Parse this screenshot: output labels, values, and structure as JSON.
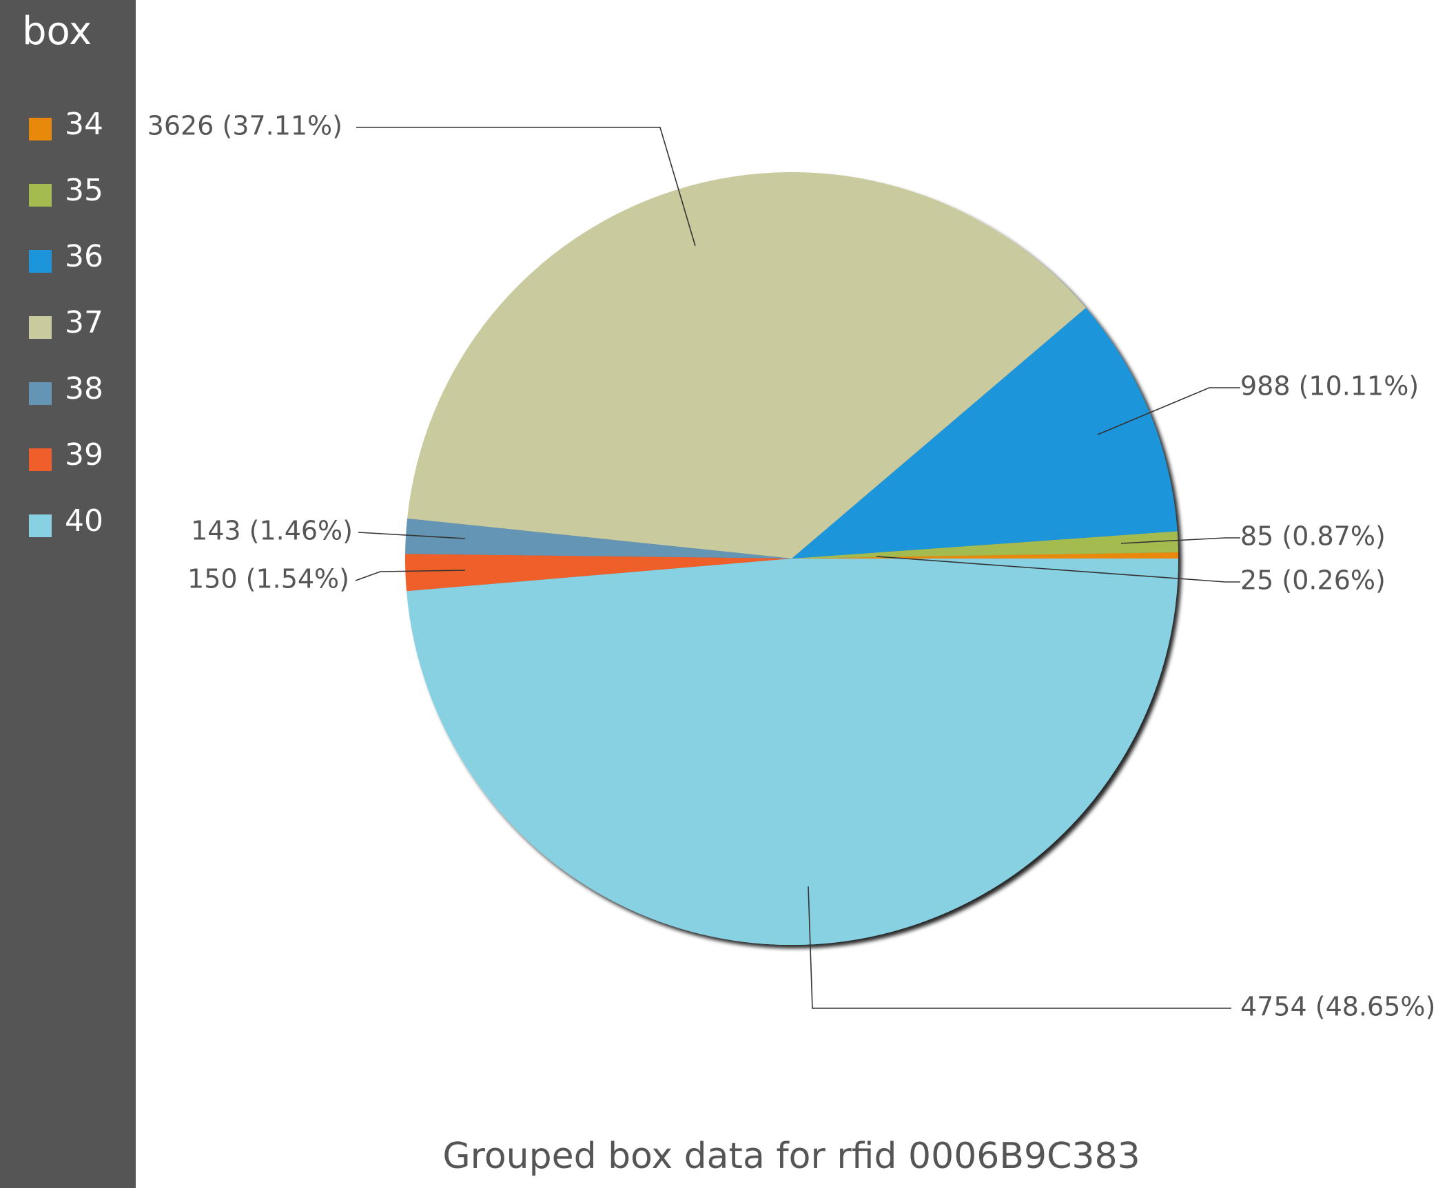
{
  "chart_data": {
    "type": "pie",
    "title": "Grouped box data for rfid 0006B9C383",
    "legend_title": "box",
    "legend_position": "left",
    "series": [
      {
        "name": "34",
        "value": 25,
        "label": "25 (0.26%)",
        "color": "#E8890C"
      },
      {
        "name": "35",
        "value": 85,
        "label": "85 (0.87%)",
        "color": "#A4BB4F"
      },
      {
        "name": "36",
        "value": 988,
        "label": "988 (10.11%)",
        "color": "#1C95DA"
      },
      {
        "name": "37",
        "value": 3626,
        "label": "3626 (37.11%)",
        "color": "#CACA9F"
      },
      {
        "name": "38",
        "value": 143,
        "label": "143 (1.46%)",
        "color": "#6595B4"
      },
      {
        "name": "39",
        "value": 150,
        "label": "150 (1.54%)",
        "color": "#EF5E2B"
      },
      {
        "name": "40",
        "value": 4754,
        "label": "4754 (48.65%)",
        "color": "#87D1E3"
      }
    ]
  }
}
